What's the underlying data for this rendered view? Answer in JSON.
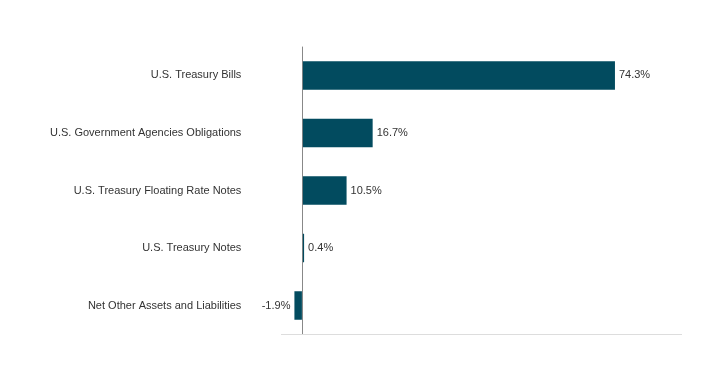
{
  "chart_data": {
    "type": "bar",
    "orientation": "horizontal",
    "categories": [
      "U.S. Treasury Bills",
      "U.S. Government Agencies Obligations",
      "U.S. Treasury Floating Rate Notes",
      "U.S. Treasury Notes",
      "Net Other Assets and Liabilities"
    ],
    "values": [
      74.3,
      16.7,
      10.5,
      0.4,
      -1.9
    ],
    "value_labels": [
      "74.3%",
      "16.7%",
      "10.5%",
      "0.4%",
      "-1.9%"
    ],
    "color": "#024b5f",
    "xlim": [
      -5,
      90
    ],
    "xticks": [
      0
    ],
    "grid": true,
    "data_labels": true,
    "tick_labels": "y"
  }
}
